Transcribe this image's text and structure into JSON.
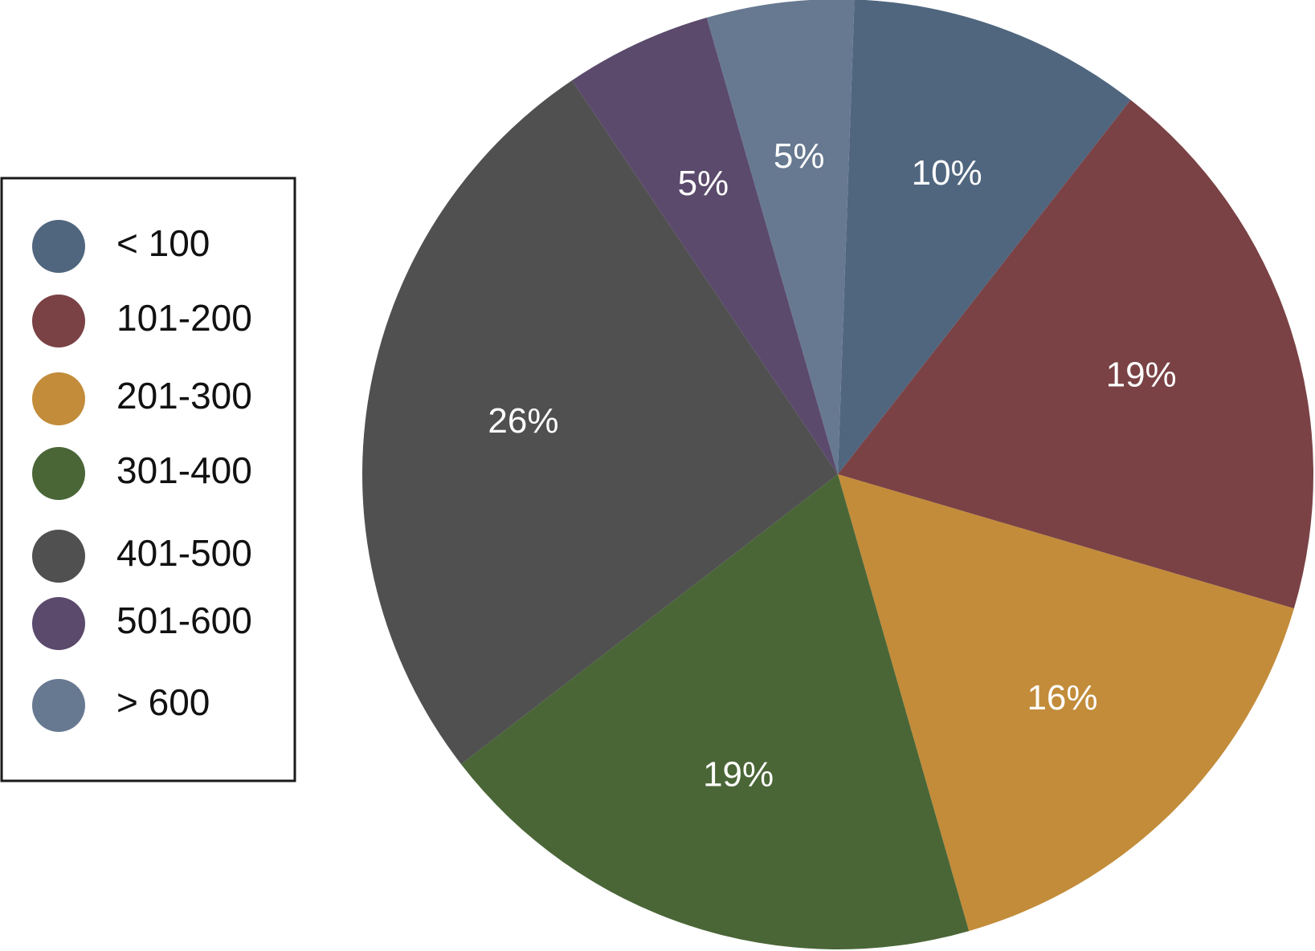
{
  "chart_data": {
    "type": "pie",
    "title": "",
    "categories": [
      "< 100",
      "101-200",
      "201-300",
      "301-400",
      "401-500",
      "501-600",
      "> 600"
    ],
    "values": [
      10,
      19,
      16,
      19,
      26,
      5,
      5
    ],
    "labels": [
      "10%",
      "19%",
      "16%",
      "19%",
      "26%",
      "5%",
      "5%"
    ],
    "colors": [
      "#50667f",
      "#7a4245",
      "#c28c3a",
      "#4a6637",
      "#505050",
      "#5b4a6c",
      "#677991"
    ],
    "start_angle_deg": 2,
    "direction": "clockwise",
    "legend": {
      "position": "left",
      "entries": [
        "< 100",
        "101-200",
        "201-300",
        "301-400",
        "401-500",
        "501-600",
        "> 600"
      ]
    }
  }
}
